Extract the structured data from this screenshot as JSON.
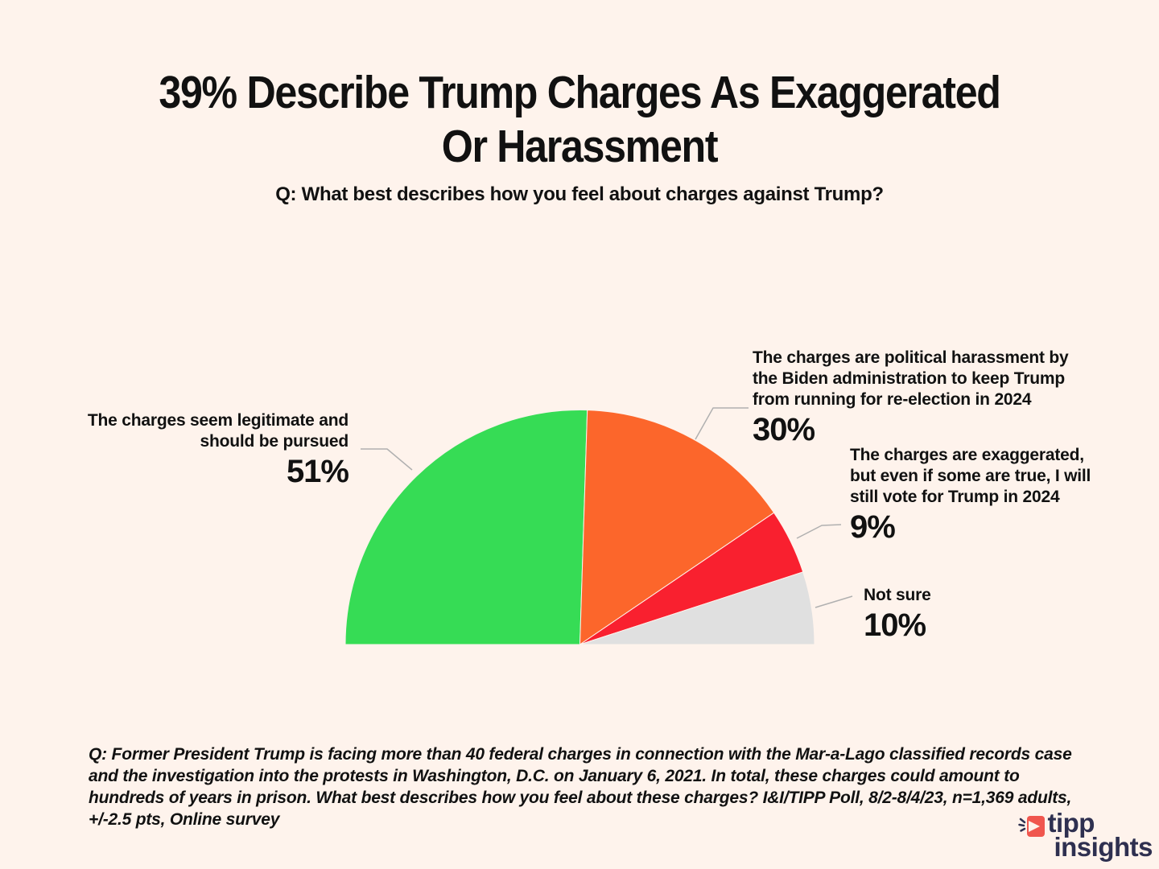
{
  "page": {
    "background": "#FEF3EC",
    "text_color": "#111111",
    "leader_line_color": "#B0B0B0"
  },
  "header": {
    "title_line1": "39% Describe Trump Charges As Exaggerated",
    "title_line2": "Or Harassment",
    "question": "Q: What best describes how you feel about charges against Trump?"
  },
  "chart_data": {
    "type": "pie",
    "variant": "semicircle-half-pie",
    "title": "39% Describe Trump Charges As Exaggerated Or Harassment",
    "question": "Q: What best describes how you feel about charges against Trump?",
    "unit": "percent",
    "total": 100,
    "legend_position": "callout-labels",
    "slices": [
      {
        "label": "The charges seem legitimate and should be pursued",
        "value": 51,
        "pct": "51%",
        "color": "#36DC55"
      },
      {
        "label": "The charges are political harassment by the Biden administration to keep Trump from running for re-election in 2024",
        "value": 30,
        "pct": "30%",
        "color": "#FC662B"
      },
      {
        "label": "The charges are exaggerated, but even if some are true, I will still vote for Trump in 2024",
        "value": 9,
        "pct": "9%",
        "color": "#F9202F"
      },
      {
        "label": "Not sure",
        "value": 10,
        "pct": "10%",
        "color": "#E0E0E0"
      }
    ]
  },
  "footer": {
    "note": "Q:  Former President Trump is facing more than 40 federal charges in connection with the Mar-a-Lago classified records case and the investigation into the protests in Washington, D.C. on January 6, 2021. In total, these charges could amount to hundreds of years in prison. What best describes how you feel about these charges? I&I/TIPP Poll, 8/2-8/4/23, n=1,369 adults, +/-2.5 pts, Online survey"
  },
  "logo": {
    "word1": "tipp",
    "word2": "insights",
    "accent_color": "#F0564E",
    "text_color": "#2E3050"
  }
}
